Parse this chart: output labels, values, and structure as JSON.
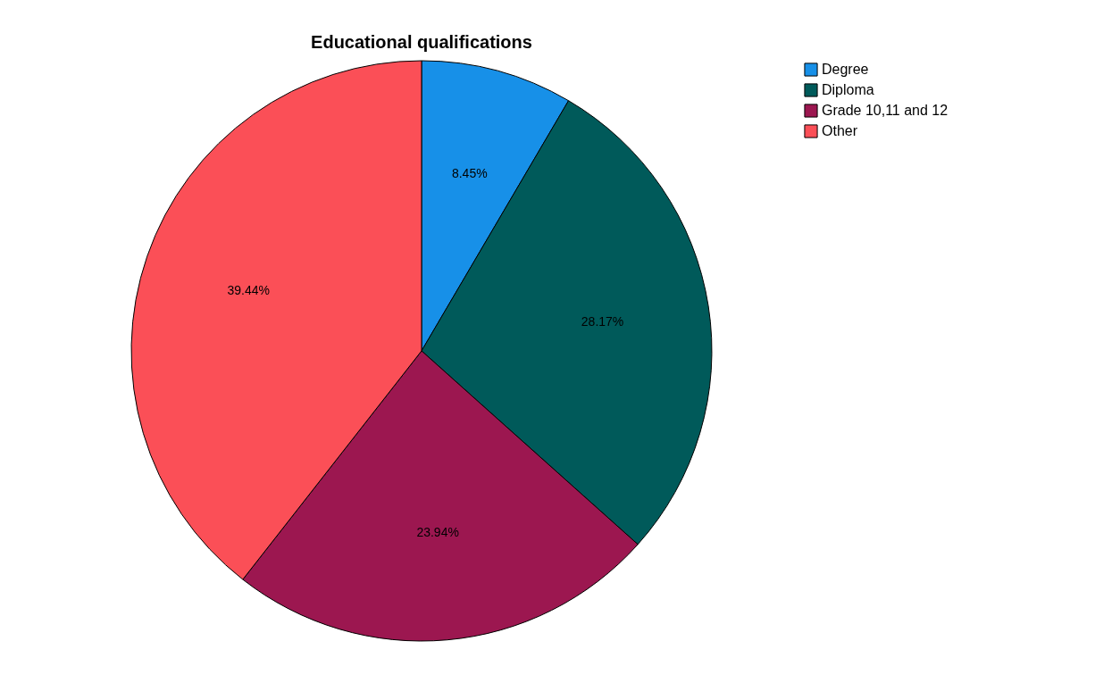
{
  "chart_data": {
    "type": "pie",
    "title": "Educational qualifications",
    "categories": [
      "Degree",
      "Diploma",
      "Grade 10,11 and 12",
      "Other"
    ],
    "values": [
      8.45,
      28.17,
      23.94,
      39.44
    ],
    "colors": [
      "#1790e8",
      "#005a5a",
      "#9c1750",
      "#fb4f57"
    ],
    "value_labels": [
      "8.45%",
      "28.17%",
      "23.94%",
      "39.44%"
    ],
    "legend": "top right"
  }
}
